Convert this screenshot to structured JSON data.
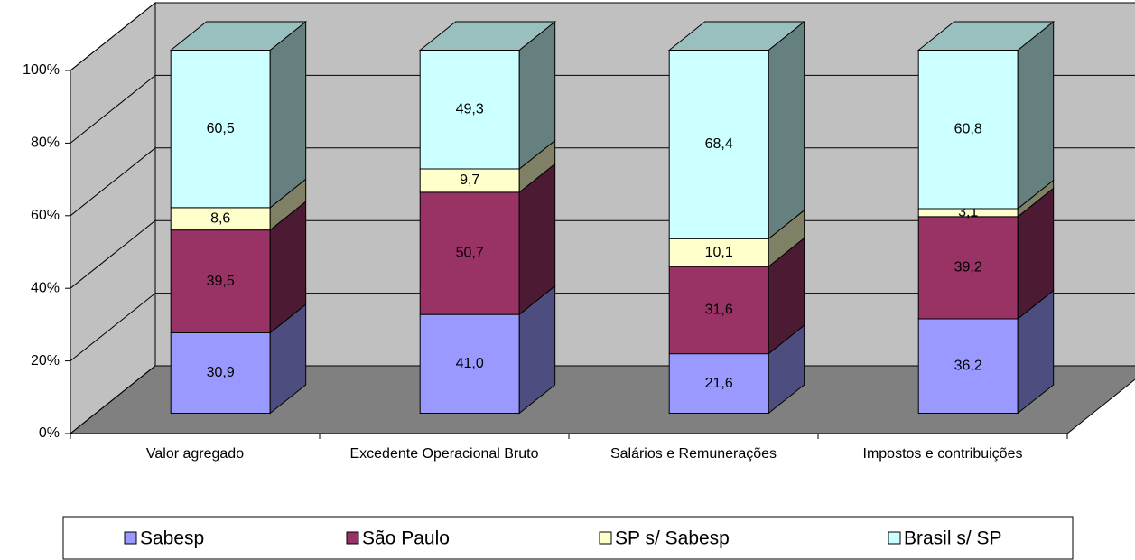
{
  "chart_data": {
    "type": "bar",
    "stack": "percent",
    "three_d": true,
    "categories": [
      "Valor agregado",
      "Excedente Operacional Bruto",
      "Salários e Remunerações",
      "Impostos e contribuições"
    ],
    "series": [
      {
        "name": "Sabesp",
        "color": "#9999ff",
        "values": [
          30.9,
          41.0,
          21.6,
          36.2
        ],
        "value_labels": [
          "30,9",
          "41,0",
          "21,6",
          "36,2"
        ]
      },
      {
        "name": "São Paulo",
        "color": "#993366",
        "values": [
          39.5,
          50.7,
          31.6,
          39.2
        ],
        "value_labels": [
          "39,5",
          "50,7",
          "31,6",
          "39,2"
        ]
      },
      {
        "name": "SP s/ Sabesp",
        "color": "#ffffcc",
        "values": [
          8.6,
          9.7,
          10.1,
          3.1
        ],
        "value_labels": [
          "8,6",
          "9,7",
          "10,1",
          "3,1"
        ]
      },
      {
        "name": "Brasil s/ SP",
        "color": "#ccffff",
        "values": [
          60.5,
          49.3,
          68.4,
          60.8
        ],
        "value_labels": [
          "60,5",
          "49,3",
          "68,4",
          "60,8"
        ]
      }
    ],
    "ylim": [
      0,
      100
    ],
    "yticks": [
      {
        "value": 0,
        "label": "0%"
      },
      {
        "value": 20,
        "label": "20%"
      },
      {
        "value": 40,
        "label": "40%"
      },
      {
        "value": 60,
        "label": "60%"
      },
      {
        "value": 80,
        "label": "80%"
      },
      {
        "value": 100,
        "label": "100%"
      }
    ],
    "grid": true,
    "legend": "bottom"
  }
}
